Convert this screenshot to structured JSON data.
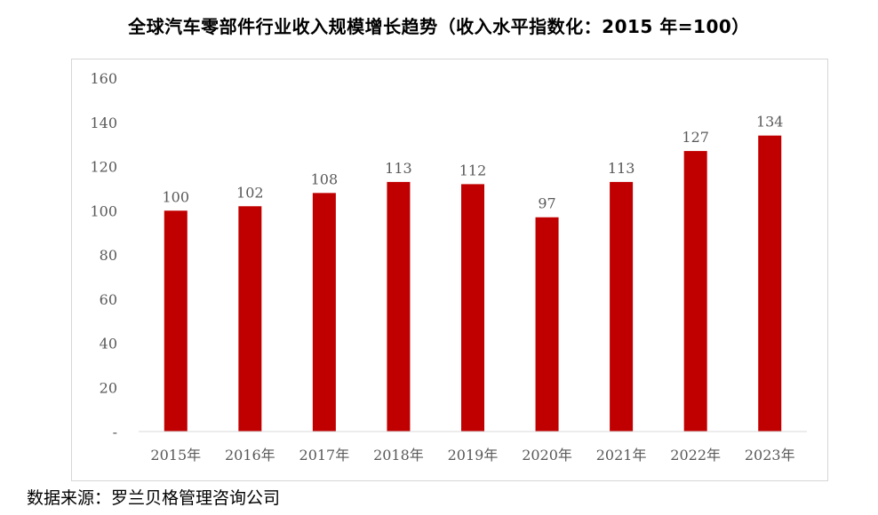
{
  "chart_data": {
    "type": "bar",
    "title": "全球汽车零部件行业收入规模增长趋势（收入水平指数化：2015 年=100）",
    "xlabel": "",
    "ylabel": "",
    "categories": [
      "2015年",
      "2016年",
      "2017年",
      "2018年",
      "2019年",
      "2020年",
      "2021年",
      "2022年",
      "2023年"
    ],
    "values": [
      100,
      102,
      108,
      113,
      112,
      97,
      113,
      127,
      134
    ],
    "ylim": [
      0,
      160
    ],
    "yticks": [
      "-",
      "20",
      "40",
      "60",
      "80",
      "100",
      "120",
      "140",
      "160"
    ],
    "bar_color": "#C00000",
    "grid": false,
    "legend": "none"
  },
  "source": "数据来源：罗兰贝格管理咨询公司"
}
